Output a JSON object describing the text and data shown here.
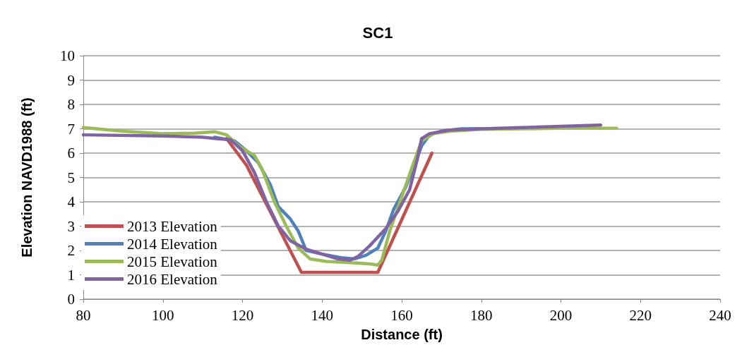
{
  "chart_data": {
    "type": "line",
    "title": "SC1",
    "xlabel": "Distance (ft)",
    "ylabel": "Elevation NAVD1988 (ft)",
    "xlim": [
      80,
      240
    ],
    "xticks": [
      80,
      100,
      120,
      140,
      160,
      180,
      200,
      220,
      240
    ],
    "ylim": [
      0,
      10
    ],
    "yticks": [
      0,
      1,
      2,
      3,
      4,
      5,
      6,
      7,
      8,
      9,
      10
    ],
    "grid": "y",
    "legend": "bottom left",
    "marker": "none",
    "line_style": "solid",
    "series": [
      {
        "name": "2013 Elevation",
        "color": "#c0504d",
        "x": [
          116,
          121,
          134.8,
          154,
          167.6
        ],
        "values": [
          6.6,
          5.5,
          1.1,
          1.1,
          6.0
        ]
      },
      {
        "name": "2014 Elevation",
        "color": "#4f81bd",
        "x": [
          113,
          118,
          121,
          124,
          127,
          129,
          132,
          134,
          136,
          140,
          145,
          148,
          151,
          154,
          156,
          158,
          161,
          163,
          165,
          167,
          170,
          175,
          180
        ],
        "values": [
          6.65,
          6.5,
          6.1,
          5.6,
          4.7,
          3.8,
          3.3,
          2.8,
          2.0,
          1.85,
          1.7,
          1.65,
          1.8,
          2.1,
          2.8,
          3.7,
          4.6,
          5.4,
          6.3,
          6.75,
          6.9,
          7.0,
          7.0
        ]
      },
      {
        "name": "2015 Elevation",
        "color": "#9bbb59",
        "x": [
          80,
          90,
          100,
          108,
          113,
          116,
          119,
          121,
          123,
          125,
          128,
          131,
          134,
          137,
          141,
          147,
          152,
          154,
          155,
          157,
          160,
          163,
          165,
          168,
          172,
          180,
          200,
          214
        ],
        "values": [
          7.05,
          6.9,
          6.8,
          6.82,
          6.88,
          6.75,
          6.3,
          6.1,
          5.9,
          5.3,
          4.0,
          3.0,
          2.1,
          1.65,
          1.55,
          1.5,
          1.45,
          1.4,
          1.6,
          2.8,
          4.2,
          5.6,
          6.5,
          6.8,
          6.9,
          6.98,
          7.02,
          7.02
        ]
      },
      {
        "name": "2016 Elevation",
        "color": "#8064a2",
        "x": [
          80,
          100,
          110,
          113,
          117,
          120,
          123,
          126,
          129,
          132,
          136,
          140,
          144,
          147,
          149,
          152,
          156,
          159,
          162,
          164,
          165,
          167,
          172,
          180,
          200,
          210
        ],
        "values": [
          6.75,
          6.7,
          6.65,
          6.6,
          6.55,
          6.1,
          5.2,
          4.0,
          3.0,
          2.4,
          2.05,
          1.85,
          1.65,
          1.6,
          1.75,
          2.2,
          2.9,
          3.6,
          4.5,
          5.8,
          6.6,
          6.8,
          6.95,
          7.0,
          7.1,
          7.15
        ]
      }
    ]
  }
}
